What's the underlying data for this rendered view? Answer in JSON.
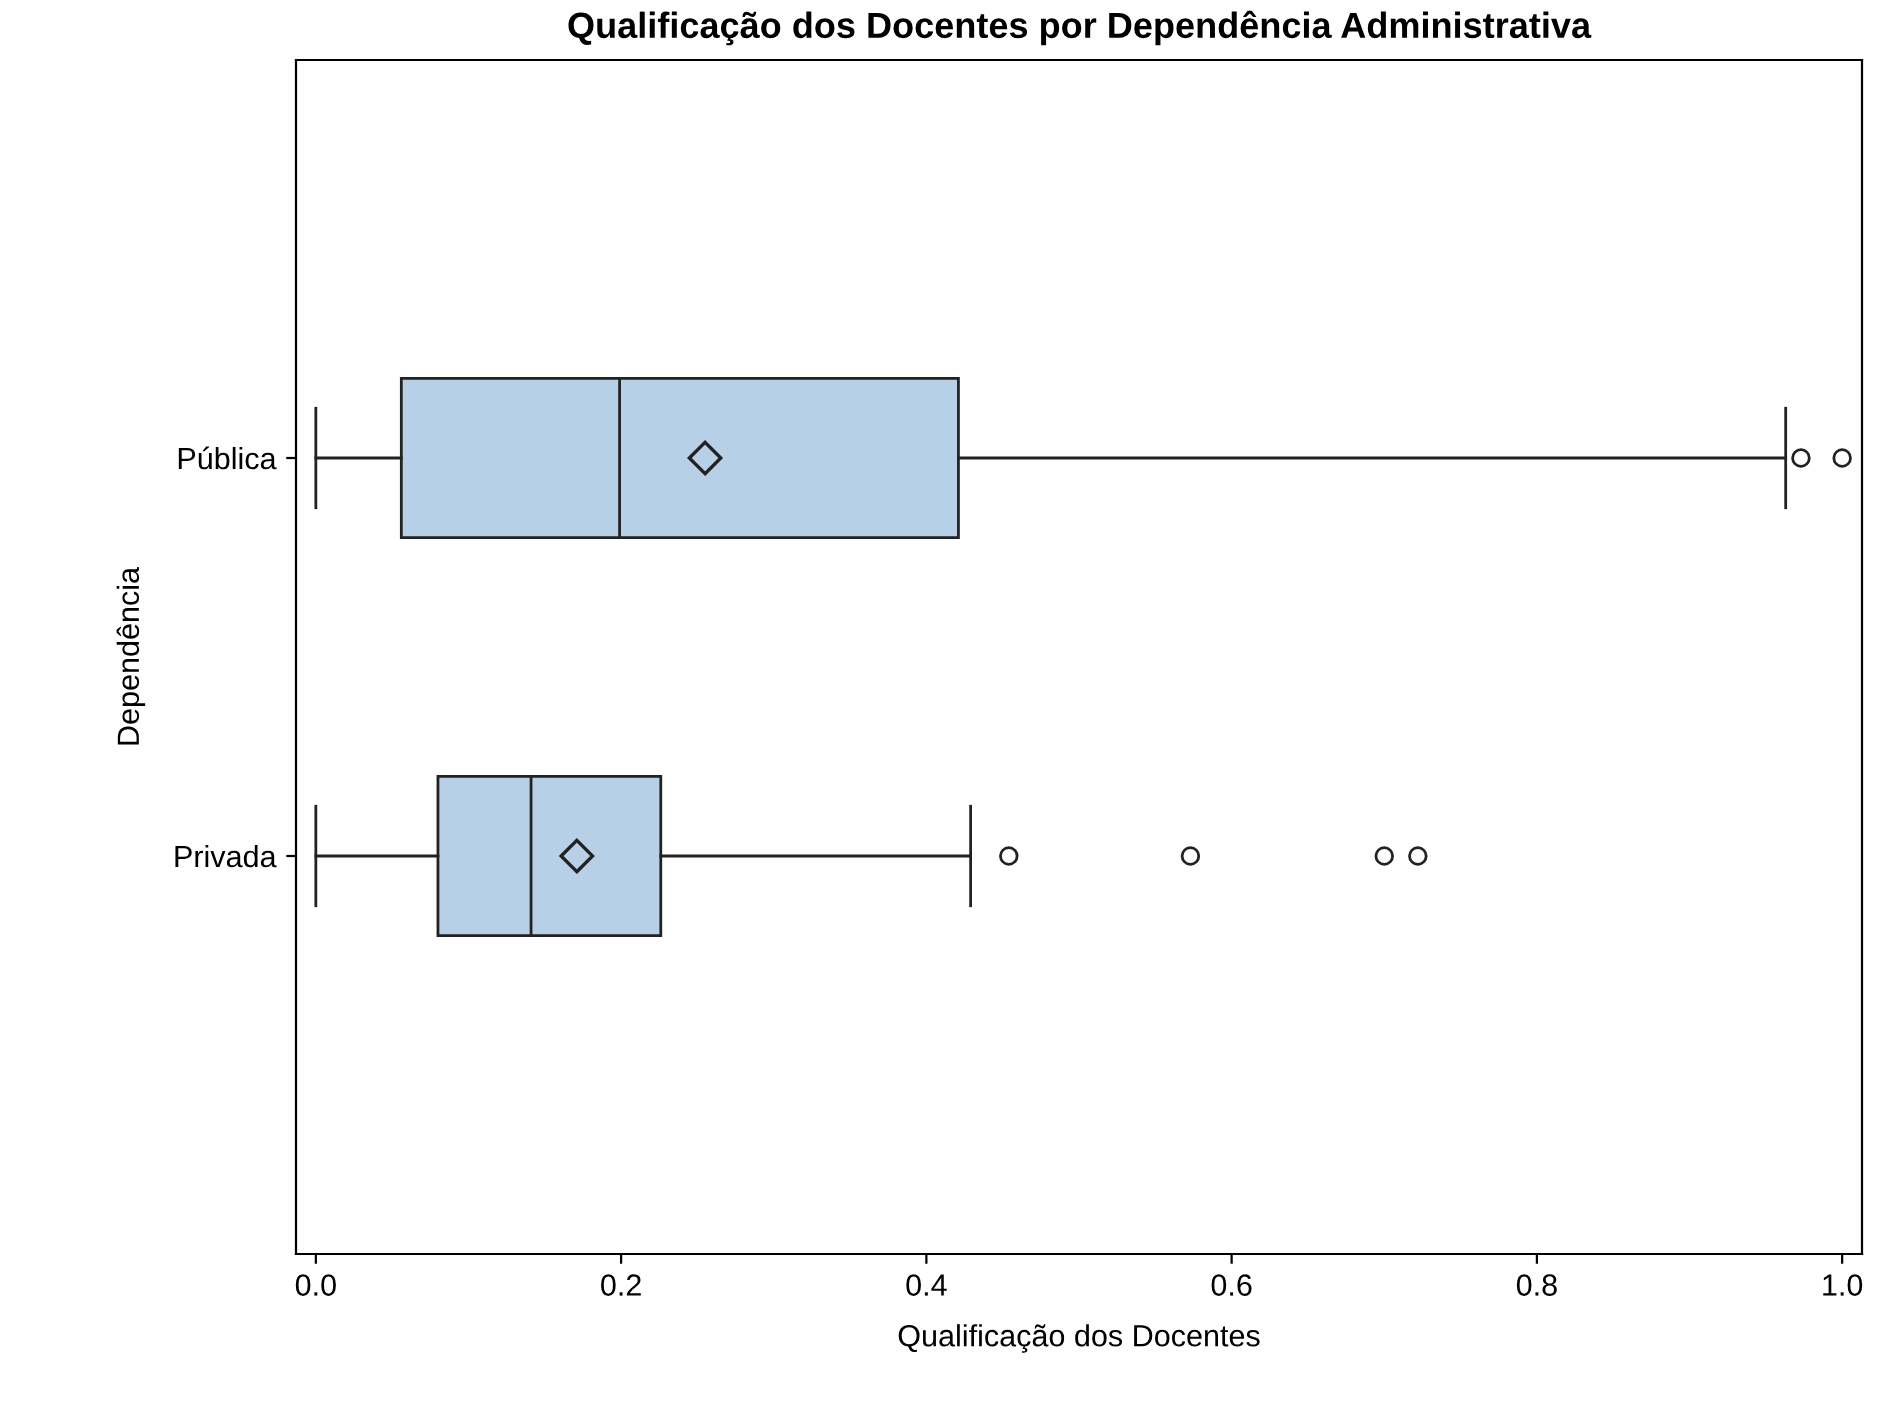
{
  "chart_data": {
    "type": "box",
    "orientation": "horizontal",
    "title": "Qualificação dos Docentes por Dependência Administrativa",
    "xlabel": "Qualificação dos Docentes",
    "ylabel": "Dependência",
    "categories": [
      "Pública",
      "Privada"
    ],
    "color": "#b8cfe8",
    "boxes": [
      {
        "low": 0.0,
        "q1": 0.056,
        "median": 0.199,
        "q3": 0.421,
        "high": 0.963,
        "mean": 0.255,
        "outliers": [
          0.973,
          1.0
        ]
      },
      {
        "low": 0.0,
        "q1": 0.08,
        "median": 0.141,
        "q3": 0.226,
        "high": 0.429,
        "mean": 0.171,
        "outliers": [
          0.454,
          0.573,
          0.7,
          0.722
        ]
      }
    ],
    "xlim": [
      -0.013,
      1.013
    ],
    "xticks": [
      {
        "value": 0,
        "label": "0.0"
      },
      0.2,
      0.4,
      0.6,
      0.8,
      {
        "value": 1,
        "label": "1.0"
      }
    ],
    "grid": false
  }
}
